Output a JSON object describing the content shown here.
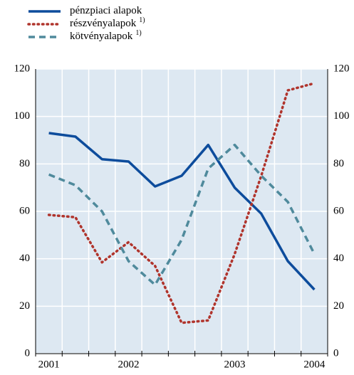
{
  "chart_data": {
    "type": "line",
    "legend_note": "1)",
    "categories": [
      "2001",
      null,
      null,
      "2002",
      null,
      null,
      null,
      "2003",
      null,
      null,
      "2004"
    ],
    "series": [
      {
        "name": "pénzpiaci alapok",
        "color": "#0d4c9c",
        "dash": "solid",
        "values": [
          93,
          91.5,
          82,
          81,
          70.5,
          75,
          88,
          70,
          59,
          39,
          27
        ]
      },
      {
        "name": "részvényalapok",
        "note": true,
        "color": "#b0342c",
        "dash": "dot",
        "values": [
          58.5,
          57.5,
          38.5,
          47,
          37,
          13,
          14,
          42,
          75,
          111,
          114
        ]
      },
      {
        "name": "kötvényalapok",
        "note": true,
        "color": "#4f8a9c",
        "dash": "dash",
        "values": [
          75.5,
          71,
          60,
          39,
          29,
          48,
          78,
          88,
          75,
          64,
          42
        ]
      }
    ],
    "ylim": [
      0,
      120
    ],
    "yticks": [
      0,
      20,
      40,
      60,
      80,
      100,
      120
    ],
    "y2lim": [
      0,
      120
    ],
    "y2ticks": [
      0,
      20,
      40,
      60,
      80,
      100,
      120
    ],
    "grid": true
  }
}
